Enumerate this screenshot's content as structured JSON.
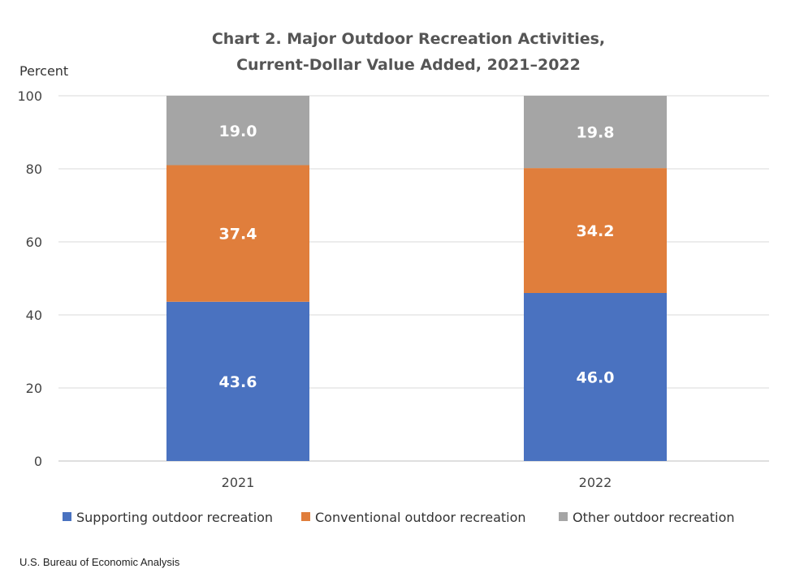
{
  "chart_data": {
    "type": "bar",
    "stacked": true,
    "title": [
      "Chart 2. Major Outdoor Recreation Activities,",
      "Current-Dollar Value Added, 2021–2022"
    ],
    "ylabel": "Percent",
    "xlabel": "",
    "ylim": [
      0,
      100
    ],
    "yticks": [
      0,
      20,
      40,
      60,
      80,
      100
    ],
    "grid": true,
    "legend_position": "bottom",
    "categories": [
      "2021",
      "2022"
    ],
    "series": [
      {
        "name": "Supporting outdoor recreation",
        "values": [
          43.6,
          46.0
        ],
        "labels": [
          "43.6",
          "46.0"
        ],
        "color": "#4A72C0"
      },
      {
        "name": "Conventional outdoor recreation",
        "values": [
          37.4,
          34.2
        ],
        "labels": [
          "37.4",
          "34.2"
        ],
        "color": "#E07E3C"
      },
      {
        "name": "Other outdoor recreation",
        "values": [
          19.0,
          19.8
        ],
        "labels": [
          "19.0",
          "19.8"
        ],
        "color": "#A5A5A5"
      }
    ]
  },
  "footer": {
    "source": "U.S. Bureau of Economic Analysis"
  }
}
